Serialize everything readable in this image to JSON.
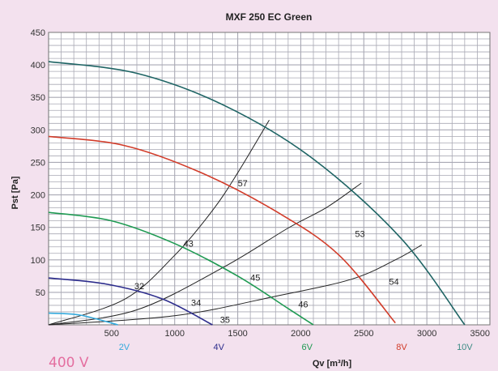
{
  "footer": {
    "text": "400 V",
    "color": "#e46fa0"
  },
  "chart_data": {
    "type": "line",
    "title": "MXF 250 EC Green",
    "xlabel": "Qv [m³/h]",
    "ylabel": "Pst [Pa]",
    "xlim": [
      0,
      3500
    ],
    "ylim": [
      0,
      450
    ],
    "x_ticks": [
      500,
      1000,
      1500,
      2000,
      2500,
      3000,
      3500
    ],
    "y_ticks": [
      50,
      100,
      150,
      200,
      250,
      300,
      350,
      400,
      450
    ],
    "grid": true,
    "plot_background": "#ffffff",
    "grid_color": "#a9a9b4",
    "series": [
      {
        "name": "2V",
        "color": "#35aadd",
        "x": [
          0,
          250,
          550
        ],
        "y": [
          18,
          15,
          0
        ]
      },
      {
        "name": "4V",
        "color": "#2c2c8c",
        "x": [
          0,
          450,
          900,
          1300
        ],
        "y": [
          72,
          63,
          40,
          0
        ]
      },
      {
        "name": "6V",
        "color": "#1e9a52",
        "x": [
          0,
          500,
          1000,
          1500,
          1900,
          2100
        ],
        "y": [
          173,
          160,
          125,
          75,
          25,
          0
        ]
      },
      {
        "name": "8V",
        "color": "#d23c2a",
        "x": [
          0,
          600,
          1200,
          1800,
          2300,
          2750
        ],
        "y": [
          290,
          276,
          235,
          175,
          108,
          3
        ]
      },
      {
        "name": "10V",
        "color": "#1e6464",
        "x": [
          0,
          700,
          1400,
          2100,
          2800,
          3300
        ],
        "y": [
          405,
          387,
          337,
          255,
          132,
          0
        ]
      }
    ],
    "system_curves": [
      {
        "color": "#222222",
        "x": [
          0,
          600,
          1000,
          1300,
          1500,
          1750
        ],
        "y": [
          0,
          39,
          107,
          176,
          234,
          315
        ]
      },
      {
        "color": "#222222",
        "x": [
          0,
          700,
          1400,
          1900,
          2200,
          2480
        ],
        "y": [
          0,
          23,
          90,
          149,
          180,
          218
        ]
      },
      {
        "color": "#222222",
        "x": [
          0,
          1000,
          1800,
          2400,
          2750,
          2960
        ],
        "y": [
          0,
          14,
          44,
          70,
          100,
          123
        ]
      }
    ],
    "voltage_labels": [
      {
        "text": "2V",
        "x": 600,
        "color": "#35aadd"
      },
      {
        "text": "4V",
        "x": 1350,
        "color": "#2c2c8c"
      },
      {
        "text": "6V",
        "x": 2050,
        "color": "#1e9a52"
      },
      {
        "text": "8V",
        "x": 2800,
        "color": "#d23c2a"
      },
      {
        "text": "10V",
        "x": 3300,
        "color": "#3d8c85"
      }
    ],
    "annotations": [
      {
        "text": "57",
        "x": 1500,
        "y": 218
      },
      {
        "text": "43",
        "x": 1070,
        "y": 125
      },
      {
        "text": "53",
        "x": 2430,
        "y": 140
      },
      {
        "text": "45",
        "x": 1600,
        "y": 73
      },
      {
        "text": "54",
        "x": 2700,
        "y": 67
      },
      {
        "text": "32",
        "x": 680,
        "y": 60
      },
      {
        "text": "34",
        "x": 1130,
        "y": 34
      },
      {
        "text": "46",
        "x": 1980,
        "y": 32
      },
      {
        "text": "35",
        "x": 1360,
        "y": 8
      }
    ]
  }
}
